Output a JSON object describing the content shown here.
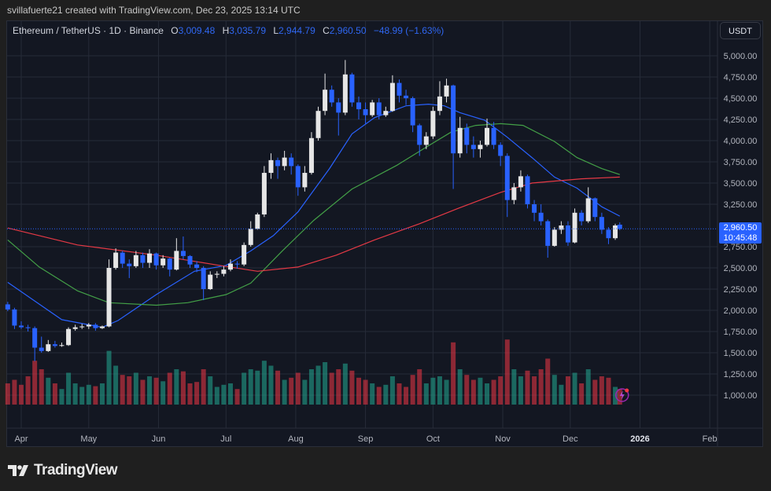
{
  "credit": "svillafuerte21 created with TradingView.com, Dec 23, 2025 13:14 UTC",
  "legend": {
    "symbol": "Ethereum / TetherUS · 1D · Binance",
    "o_label": "O",
    "o": "3,009.48",
    "h_label": "H",
    "h": "3,035.79",
    "l_label": "L",
    "l": "2,944.79",
    "c_label": "C",
    "c": "2,960.50",
    "change": "−48.99 (−1.63%)"
  },
  "currency_button": "USDT",
  "last_price": {
    "price": "2,960.50",
    "countdown": "10:45:48"
  },
  "brand": "TradingView",
  "colors": {
    "bull": "#e6e6e6",
    "bear": "#2962ff",
    "vol_bull": "#22ab94",
    "vol_bear": "#f23645",
    "ma_blue": "#2962ff",
    "ma_green": "#43a047",
    "ma_red": "#e53945",
    "last_price": "#2962ff"
  },
  "chart_data": {
    "type": "candlestick",
    "title": "Ethereum / TetherUS · 1D · Binance",
    "ylim": [
      875,
      5150
    ],
    "grid": true,
    "y_ticks": [
      "5,000.00",
      "4,750.00",
      "4,500.00",
      "4,250.00",
      "4,000.00",
      "3,750.00",
      "3,500.00",
      "3,250.00",
      "2,750.00",
      "2,500.00",
      "2,250.00",
      "2,000.00",
      "1,750.00",
      "1,500.00",
      "1,250.00",
      "1,000.00"
    ],
    "y_tick_values": [
      5000,
      4750,
      4500,
      4250,
      4000,
      3750,
      3500,
      3250,
      2750,
      2500,
      2250,
      2000,
      1750,
      1500,
      1250,
      1000
    ],
    "x_ticks": [
      {
        "label": "Apr",
        "date": "2025-04-01"
      },
      {
        "label": "May",
        "date": "2025-05-01"
      },
      {
        "label": "Jun",
        "date": "2025-06-01"
      },
      {
        "label": "Jul",
        "date": "2025-07-01"
      },
      {
        "label": "Aug",
        "date": "2025-08-01"
      },
      {
        "label": "Sep",
        "date": "2025-09-01"
      },
      {
        "label": "Oct",
        "date": "2025-10-01"
      },
      {
        "label": "Nov",
        "date": "2025-11-01"
      },
      {
        "label": "Dec",
        "date": "2025-12-01"
      },
      {
        "label": "2026",
        "date": "2026-01-01"
      },
      {
        "label": "Feb",
        "date": "2026-02-01"
      }
    ],
    "last_price": 2960.5,
    "candles_columns": [
      "date",
      "open",
      "high",
      "low",
      "close",
      "volume_relative"
    ],
    "candles": [
      [
        "2025-03-26",
        2070,
        2100,
        1990,
        2010,
        30
      ],
      [
        "2025-03-29",
        2010,
        2030,
        1780,
        1820,
        35
      ],
      [
        "2025-04-01",
        1820,
        1870,
        1780,
        1800,
        28
      ],
      [
        "2025-04-04",
        1800,
        1830,
        1750,
        1790,
        40
      ],
      [
        "2025-04-07",
        1790,
        1810,
        1400,
        1560,
        62
      ],
      [
        "2025-04-10",
        1560,
        1690,
        1500,
        1520,
        50
      ],
      [
        "2025-04-13",
        1520,
        1650,
        1510,
        1600,
        38
      ],
      [
        "2025-04-16",
        1600,
        1640,
        1560,
        1580,
        30
      ],
      [
        "2025-04-19",
        1580,
        1620,
        1570,
        1590,
        22
      ],
      [
        "2025-04-22",
        1590,
        1800,
        1580,
        1780,
        45
      ],
      [
        "2025-04-25",
        1780,
        1830,
        1760,
        1800,
        30
      ],
      [
        "2025-04-28",
        1800,
        1840,
        1780,
        1810,
        25
      ],
      [
        "2025-05-01",
        1810,
        1850,
        1780,
        1830,
        28
      ],
      [
        "2025-05-04",
        1830,
        1850,
        1760,
        1790,
        26
      ],
      [
        "2025-05-07",
        1790,
        1820,
        1780,
        1810,
        30
      ],
      [
        "2025-05-10",
        1810,
        2600,
        1800,
        2500,
        76
      ],
      [
        "2025-05-13",
        2500,
        2730,
        2480,
        2680,
        55
      ],
      [
        "2025-05-16",
        2680,
        2700,
        2500,
        2550,
        42
      ],
      [
        "2025-05-19",
        2550,
        2600,
        2380,
        2520,
        40
      ],
      [
        "2025-05-22",
        2520,
        2700,
        2500,
        2650,
        45
      ],
      [
        "2025-05-25",
        2650,
        2680,
        2500,
        2560,
        35
      ],
      [
        "2025-05-28",
        2560,
        2720,
        2500,
        2670,
        40
      ],
      [
        "2025-05-31",
        2670,
        2680,
        2480,
        2530,
        38
      ],
      [
        "2025-06-03",
        2530,
        2650,
        2500,
        2610,
        33
      ],
      [
        "2025-06-06",
        2610,
        2620,
        2400,
        2480,
        45
      ],
      [
        "2025-06-09",
        2480,
        2850,
        2470,
        2700,
        50
      ],
      [
        "2025-06-12",
        2700,
        2870,
        2600,
        2640,
        47
      ],
      [
        "2025-06-15",
        2640,
        2650,
        2500,
        2540,
        30
      ],
      [
        "2025-06-18",
        2540,
        2580,
        2450,
        2500,
        32
      ],
      [
        "2025-06-21",
        2500,
        2520,
        2120,
        2250,
        50
      ],
      [
        "2025-06-24",
        2250,
        2460,
        2240,
        2420,
        40
      ],
      [
        "2025-06-27",
        2420,
        2460,
        2380,
        2430,
        25
      ],
      [
        "2025-06-30",
        2430,
        2520,
        2400,
        2480,
        28
      ],
      [
        "2025-07-03",
        2480,
        2600,
        2460,
        2550,
        30
      ],
      [
        "2025-07-06",
        2550,
        2580,
        2490,
        2540,
        22
      ],
      [
        "2025-07-09",
        2540,
        2800,
        2520,
        2770,
        45
      ],
      [
        "2025-07-12",
        2770,
        3050,
        2750,
        2960,
        50
      ],
      [
        "2025-07-15",
        2960,
        3150,
        2950,
        3130,
        48
      ],
      [
        "2025-07-18",
        3130,
        3700,
        3100,
        3620,
        62
      ],
      [
        "2025-07-21",
        3620,
        3850,
        3550,
        3770,
        55
      ],
      [
        "2025-07-24",
        3770,
        3800,
        3550,
        3700,
        48
      ],
      [
        "2025-07-27",
        3700,
        3880,
        3650,
        3800,
        35
      ],
      [
        "2025-07-30",
        3800,
        3850,
        3600,
        3700,
        38
      ],
      [
        "2025-08-02",
        3700,
        3720,
        3350,
        3450,
        45
      ],
      [
        "2025-08-05",
        3450,
        3700,
        3400,
        3620,
        35
      ],
      [
        "2025-08-08",
        3620,
        4100,
        3600,
        4030,
        50
      ],
      [
        "2025-08-11",
        4030,
        4400,
        4000,
        4350,
        55
      ],
      [
        "2025-08-14",
        4350,
        4790,
        4300,
        4600,
        60
      ],
      [
        "2025-08-17",
        4600,
        4650,
        4400,
        4450,
        45
      ],
      [
        "2025-08-20",
        4450,
        4500,
        4060,
        4330,
        50
      ],
      [
        "2025-08-23",
        4330,
        4950,
        4300,
        4780,
        58
      ],
      [
        "2025-08-26",
        4780,
        4800,
        4400,
        4450,
        48
      ],
      [
        "2025-08-29",
        4450,
        4520,
        4250,
        4370,
        38
      ],
      [
        "2025-09-01",
        4370,
        4450,
        4200,
        4300,
        35
      ],
      [
        "2025-09-04",
        4300,
        4480,
        4280,
        4450,
        30
      ],
      [
        "2025-09-07",
        4450,
        4500,
        4250,
        4300,
        25
      ],
      [
        "2025-09-10",
        4300,
        4400,
        4280,
        4350,
        28
      ],
      [
        "2025-09-13",
        4350,
        4770,
        4340,
        4680,
        40
      ],
      [
        "2025-09-16",
        4680,
        4720,
        4450,
        4530,
        30
      ],
      [
        "2025-09-19",
        4530,
        4600,
        4420,
        4500,
        25
      ],
      [
        "2025-09-22",
        4500,
        4520,
        4100,
        4180,
        42
      ],
      [
        "2025-09-25",
        4180,
        4200,
        3820,
        3950,
        50
      ],
      [
        "2025-09-28",
        3950,
        4100,
        3900,
        4050,
        30
      ],
      [
        "2025-10-01",
        4050,
        4400,
        4020,
        4350,
        38
      ],
      [
        "2025-10-04",
        4350,
        4700,
        4300,
        4520,
        40
      ],
      [
        "2025-10-07",
        4520,
        4730,
        4450,
        4650,
        35
      ],
      [
        "2025-10-10",
        4650,
        4660,
        3430,
        3850,
        88
      ],
      [
        "2025-10-13",
        3850,
        4280,
        3800,
        4150,
        50
      ],
      [
        "2025-10-16",
        4150,
        4200,
        3850,
        3950,
        42
      ],
      [
        "2025-10-19",
        3950,
        4050,
        3800,
        3900,
        35
      ],
      [
        "2025-10-22",
        3900,
        4000,
        3800,
        3950,
        38
      ],
      [
        "2025-10-25",
        3950,
        4260,
        3930,
        4150,
        30
      ],
      [
        "2025-10-28",
        4150,
        4220,
        3900,
        3950,
        35
      ],
      [
        "2025-10-31",
        3950,
        3980,
        3700,
        3820,
        40
      ],
      [
        "2025-11-03",
        3820,
        3850,
        3100,
        3300,
        92
      ],
      [
        "2025-11-06",
        3300,
        3500,
        3250,
        3450,
        50
      ],
      [
        "2025-11-09",
        3450,
        3650,
        3400,
        3580,
        40
      ],
      [
        "2025-11-12",
        3580,
        3600,
        3200,
        3250,
        48
      ],
      [
        "2025-11-15",
        3250,
        3300,
        3050,
        3150,
        40
      ],
      [
        "2025-11-18",
        3150,
        3250,
        3000,
        3050,
        50
      ],
      [
        "2025-11-21",
        3050,
        3070,
        2620,
        2760,
        65
      ],
      [
        "2025-11-24",
        2760,
        2980,
        2750,
        2950,
        42
      ],
      [
        "2025-11-27",
        2950,
        3050,
        2900,
        3000,
        28
      ],
      [
        "2025-11-30",
        3000,
        3050,
        2760,
        2800,
        40
      ],
      [
        "2025-12-03",
        2800,
        3200,
        2790,
        3150,
        45
      ],
      [
        "2025-12-06",
        3150,
        3180,
        3000,
        3050,
        30
      ],
      [
        "2025-12-09",
        3050,
        3450,
        3030,
        3320,
        50
      ],
      [
        "2025-12-12",
        3320,
        3330,
        3050,
        3100,
        35
      ],
      [
        "2025-12-15",
        3100,
        3150,
        2900,
        2950,
        40
      ],
      [
        "2025-12-18",
        2950,
        2980,
        2780,
        2850,
        38
      ],
      [
        "2025-12-21",
        2850,
        3020,
        2830,
        3000,
        25
      ],
      [
        "2025-12-23",
        3009.48,
        3035.79,
        2944.79,
        2960.5,
        22
      ]
    ],
    "moving_averages": [
      {
        "color": "#2962ff",
        "points": [
          [
            "2025-03-26",
            2330
          ],
          [
            "2025-04-19",
            1890
          ],
          [
            "2025-05-07",
            1800
          ],
          [
            "2025-05-14",
            1880
          ],
          [
            "2025-05-31",
            2185
          ],
          [
            "2025-06-17",
            2460
          ],
          [
            "2025-07-01",
            2530
          ],
          [
            "2025-07-12",
            2700
          ],
          [
            "2025-07-22",
            2880
          ],
          [
            "2025-08-02",
            3160
          ],
          [
            "2025-08-16",
            3670
          ],
          [
            "2025-08-26",
            4080
          ],
          [
            "2025-09-05",
            4270
          ],
          [
            "2025-09-19",
            4410
          ],
          [
            "2025-09-29",
            4430
          ],
          [
            "2025-10-06",
            4410
          ],
          [
            "2025-10-13",
            4330
          ],
          [
            "2025-10-24",
            4240
          ],
          [
            "2025-11-03",
            4040
          ],
          [
            "2025-11-14",
            3800
          ],
          [
            "2025-11-24",
            3570
          ],
          [
            "2025-12-04",
            3440
          ],
          [
            "2025-12-15",
            3220
          ],
          [
            "2025-12-23",
            3110
          ]
        ]
      },
      {
        "color": "#43a047",
        "points": [
          [
            "2025-03-26",
            2830
          ],
          [
            "2025-04-09",
            2510
          ],
          [
            "2025-04-26",
            2230
          ],
          [
            "2025-05-10",
            2090
          ],
          [
            "2025-05-31",
            2060
          ],
          [
            "2025-06-14",
            2090
          ],
          [
            "2025-07-01",
            2185
          ],
          [
            "2025-07-12",
            2320
          ],
          [
            "2025-07-26",
            2700
          ],
          [
            "2025-08-09",
            3060
          ],
          [
            "2025-08-26",
            3430
          ],
          [
            "2025-09-15",
            3710
          ],
          [
            "2025-09-29",
            3940
          ],
          [
            "2025-10-09",
            4100
          ],
          [
            "2025-10-20",
            4180
          ],
          [
            "2025-10-31",
            4200
          ],
          [
            "2025-11-10",
            4180
          ],
          [
            "2025-11-24",
            3990
          ],
          [
            "2025-12-04",
            3800
          ],
          [
            "2025-12-15",
            3670
          ],
          [
            "2025-12-23",
            3600
          ]
        ]
      },
      {
        "color": "#e53945",
        "points": [
          [
            "2025-03-26",
            2970
          ],
          [
            "2025-04-26",
            2770
          ],
          [
            "2025-05-31",
            2650
          ],
          [
            "2025-06-28",
            2530
          ],
          [
            "2025-07-15",
            2460
          ],
          [
            "2025-08-02",
            2510
          ],
          [
            "2025-08-19",
            2650
          ],
          [
            "2025-09-05",
            2830
          ],
          [
            "2025-09-25",
            3020
          ],
          [
            "2025-10-12",
            3200
          ],
          [
            "2025-10-31",
            3390
          ],
          [
            "2025-11-14",
            3500
          ],
          [
            "2025-12-06",
            3550
          ],
          [
            "2025-12-23",
            3570
          ]
        ]
      }
    ]
  }
}
